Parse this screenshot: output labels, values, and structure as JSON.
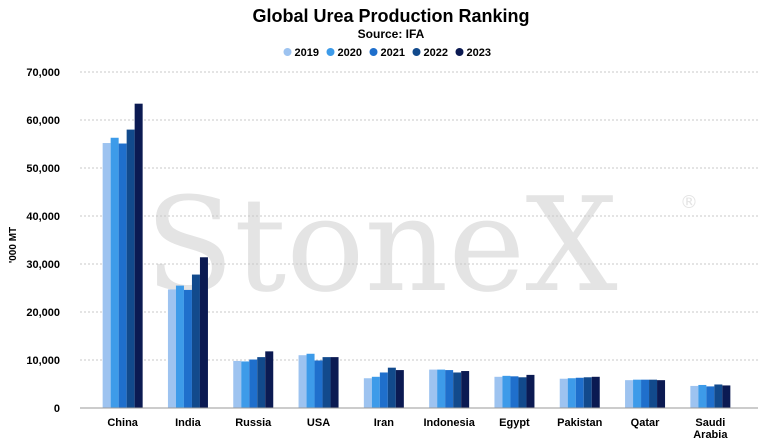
{
  "chart_data": {
    "type": "bar",
    "title": "Global Urea Production Ranking",
    "subtitle": "Source: IFA",
    "ylabel": "'000 MT",
    "xlabel": "",
    "ylim": [
      0,
      70000
    ],
    "yticks": [
      0,
      10000,
      20000,
      30000,
      40000,
      50000,
      60000,
      70000
    ],
    "ytick_labels": [
      "0",
      "10,000",
      "20,000",
      "30,000",
      "40,000",
      "50,000",
      "60,000",
      "70,000"
    ],
    "grid": true,
    "legend_position": "top-center",
    "categories": [
      "China",
      "India",
      "Russia",
      "USA",
      "Iran",
      "Indonesia",
      "Egypt",
      "Pakistan",
      "Qatar",
      "Saudi Arabia"
    ],
    "category_lines": [
      [
        "China"
      ],
      [
        "India"
      ],
      [
        "Russia"
      ],
      [
        "USA"
      ],
      [
        "Iran"
      ],
      [
        "Indonesia"
      ],
      [
        "Egypt"
      ],
      [
        "Pakistan"
      ],
      [
        "Qatar"
      ],
      [
        "Saudi",
        "Arabia"
      ]
    ],
    "series": [
      {
        "name": "2019",
        "color": "#9dc3f0",
        "values": [
          55200,
          24700,
          9800,
          11000,
          6200,
          8000,
          6500,
          6100,
          5800,
          4600
        ]
      },
      {
        "name": "2020",
        "color": "#3d9be9",
        "values": [
          56300,
          25500,
          9700,
          11300,
          6500,
          8000,
          6700,
          6200,
          5900,
          4800
        ]
      },
      {
        "name": "2021",
        "color": "#1f6fcc",
        "values": [
          55100,
          24600,
          10100,
          9900,
          7400,
          7900,
          6600,
          6300,
          5900,
          4500
        ]
      },
      {
        "name": "2022",
        "color": "#124a8c",
        "values": [
          58000,
          27800,
          10600,
          10600,
          8400,
          7400,
          6400,
          6400,
          5900,
          4900
        ]
      },
      {
        "name": "2023",
        "color": "#0b1a52",
        "values": [
          63400,
          31400,
          11800,
          10600,
          7900,
          7700,
          6900,
          6500,
          5800,
          4700
        ]
      }
    ],
    "watermark": "StoneX",
    "watermark_mark": "®"
  }
}
